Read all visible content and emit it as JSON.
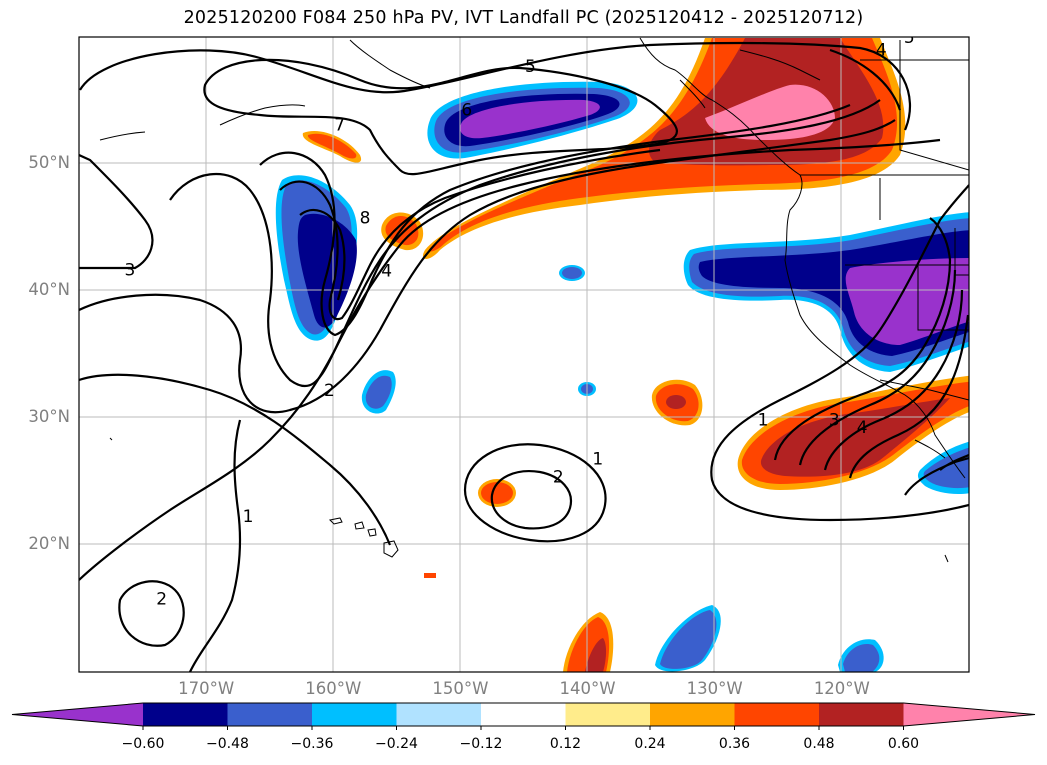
{
  "title": "2025120200 F084 250 hPa PV, IVT Landfall PC (2025120412 - 2025120712)",
  "map": {
    "lon_range": [
      -180,
      -110
    ],
    "lat_range": [
      10,
      60
    ],
    "lat_ticks": [
      {
        "value": 50,
        "label": "50°N"
      },
      {
        "value": 40,
        "label": "40°N"
      },
      {
        "value": 30,
        "label": "30°N"
      },
      {
        "value": 20,
        "label": "20°N"
      }
    ],
    "lon_ticks": [
      {
        "value": -170,
        "label": "170°W"
      },
      {
        "value": -160,
        "label": "160°W"
      },
      {
        "value": -150,
        "label": "150°W"
      },
      {
        "value": -140,
        "label": "140°W"
      },
      {
        "value": -130,
        "label": "130°W"
      },
      {
        "value": -120,
        "label": "120°W"
      }
    ],
    "grid": true,
    "contour_labels": [
      {
        "text": "5",
        "lon": -144.5,
        "lat": 57.7
      },
      {
        "text": "6",
        "lon": -149.5,
        "lat": 54.3
      },
      {
        "text": "7",
        "lon": -159.5,
        "lat": 53.1
      },
      {
        "text": "8",
        "lon": -157.5,
        "lat": 45.8
      },
      {
        "text": "4",
        "lon": -155.8,
        "lat": 41.6
      },
      {
        "text": "3",
        "lon": -176.0,
        "lat": 41.7
      },
      {
        "text": "2",
        "lon": -160.3,
        "lat": 32.2
      },
      {
        "text": "1",
        "lon": -166.7,
        "lat": 22.3
      },
      {
        "text": "2",
        "lon": -173.5,
        "lat": 15.8
      },
      {
        "text": "1",
        "lon": -139.2,
        "lat": 26.8
      },
      {
        "text": "2",
        "lon": -142.3,
        "lat": 25.4
      },
      {
        "text": "1",
        "lon": -126.2,
        "lat": 29.9
      },
      {
        "text": "3",
        "lon": -120.6,
        "lat": 29.9
      },
      {
        "text": "4",
        "lon": -118.4,
        "lat": 29.3
      },
      {
        "text": "4",
        "lon": -116.9,
        "lat": 59.0
      },
      {
        "text": "5",
        "lon": -114.7,
        "lat": 60.0
      }
    ]
  },
  "colorbar": {
    "levels": [
      "−0.60",
      "−0.48",
      "−0.36",
      "−0.24",
      "−0.12",
      "0.12",
      "0.24",
      "0.36",
      "0.48",
      "0.60"
    ],
    "colors": [
      "#9932cc",
      "#00008b",
      "#3a5fcd",
      "#00bfff",
      "#b0e2ff",
      "#ffffff",
      "#ffec8b",
      "#ffa500",
      "#ff4500",
      "#b22222",
      "#ff82ab"
    ]
  }
}
